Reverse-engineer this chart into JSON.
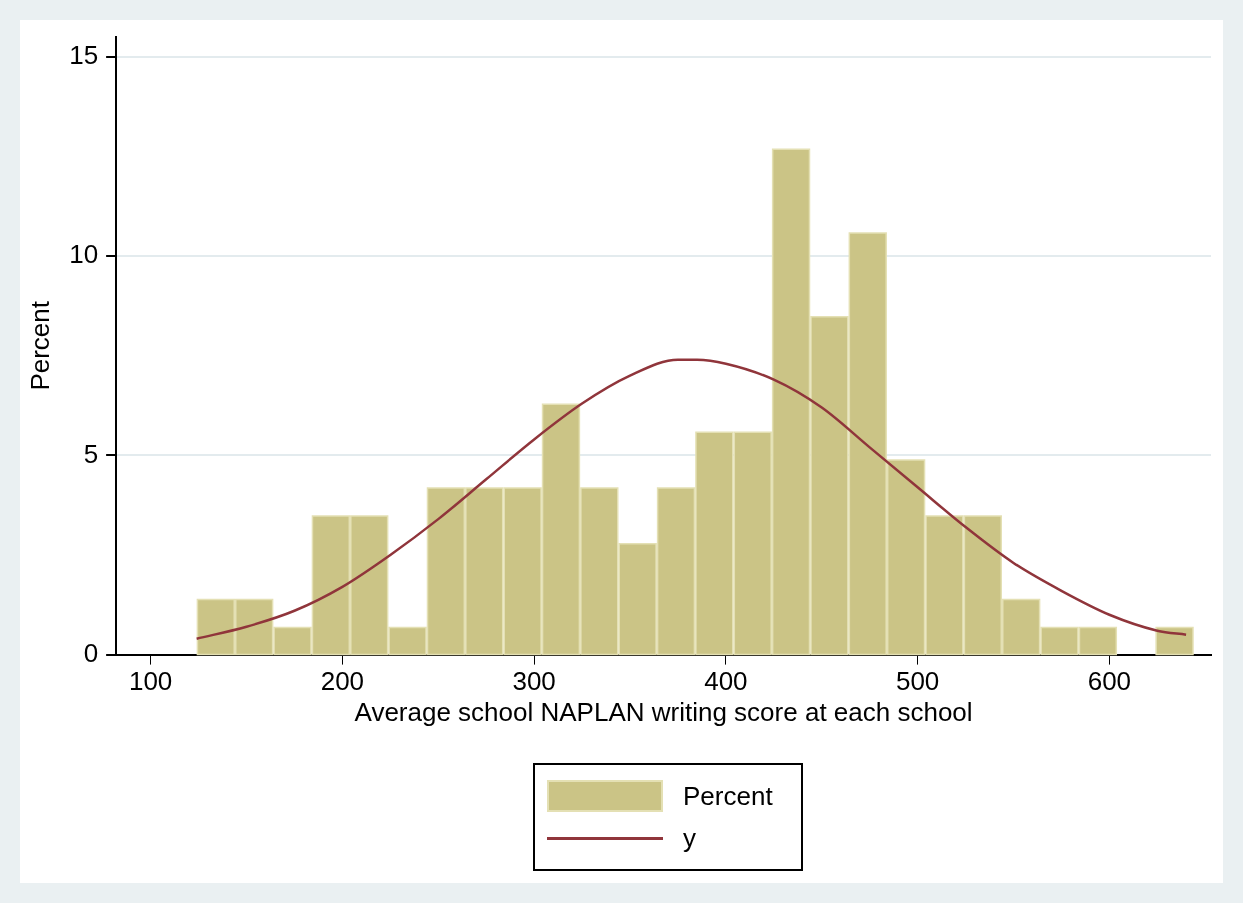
{
  "chart_data": {
    "type": "histogram",
    "xlabel": "Average school NAPLAN writing score at each school",
    "ylabel": "Percent",
    "bins": [
      124,
      144,
      164,
      184,
      204,
      224,
      244,
      264,
      284,
      304,
      324,
      344,
      364,
      384,
      404,
      424,
      444,
      464,
      484,
      504,
      524,
      544,
      564,
      584,
      604,
      624,
      644
    ],
    "series": [
      {
        "name": "Percent",
        "color": "#cbc486",
        "values": [
          1.4,
          1.4,
          0.7,
          3.5,
          3.5,
          0.7,
          4.2,
          4.2,
          4.2,
          6.3,
          4.2,
          2.8,
          4.2,
          5.6,
          5.6,
          12.7,
          8.5,
          10.6,
          4.9,
          3.5,
          3.5,
          1.4,
          0.7,
          0.7,
          0,
          0.7
        ]
      },
      {
        "name": "y",
        "type": "line",
        "color": "#90353b",
        "x": [
          124,
          150,
          175,
          200,
          225,
          250,
          275,
          300,
          325,
          350,
          375,
          385,
          400,
          425,
          450,
          475,
          500,
          525,
          550,
          575,
          600,
          625,
          640
        ],
        "values": [
          0.4,
          0.7,
          1.1,
          1.7,
          2.5,
          3.4,
          4.4,
          5.4,
          6.3,
          7.0,
          7.4,
          7.4,
          7.3,
          6.9,
          6.2,
          5.2,
          4.2,
          3.2,
          2.3,
          1.6,
          1.0,
          0.6,
          0.5
        ]
      }
    ],
    "xlim": [
      82,
      653
    ],
    "xticks": [
      100,
      200,
      300,
      400,
      500,
      600
    ],
    "ylim": [
      0,
      15.5
    ],
    "yticks": [
      0,
      5,
      10,
      15
    ],
    "grid": "y",
    "legend": "bottom",
    "marker": "none"
  }
}
